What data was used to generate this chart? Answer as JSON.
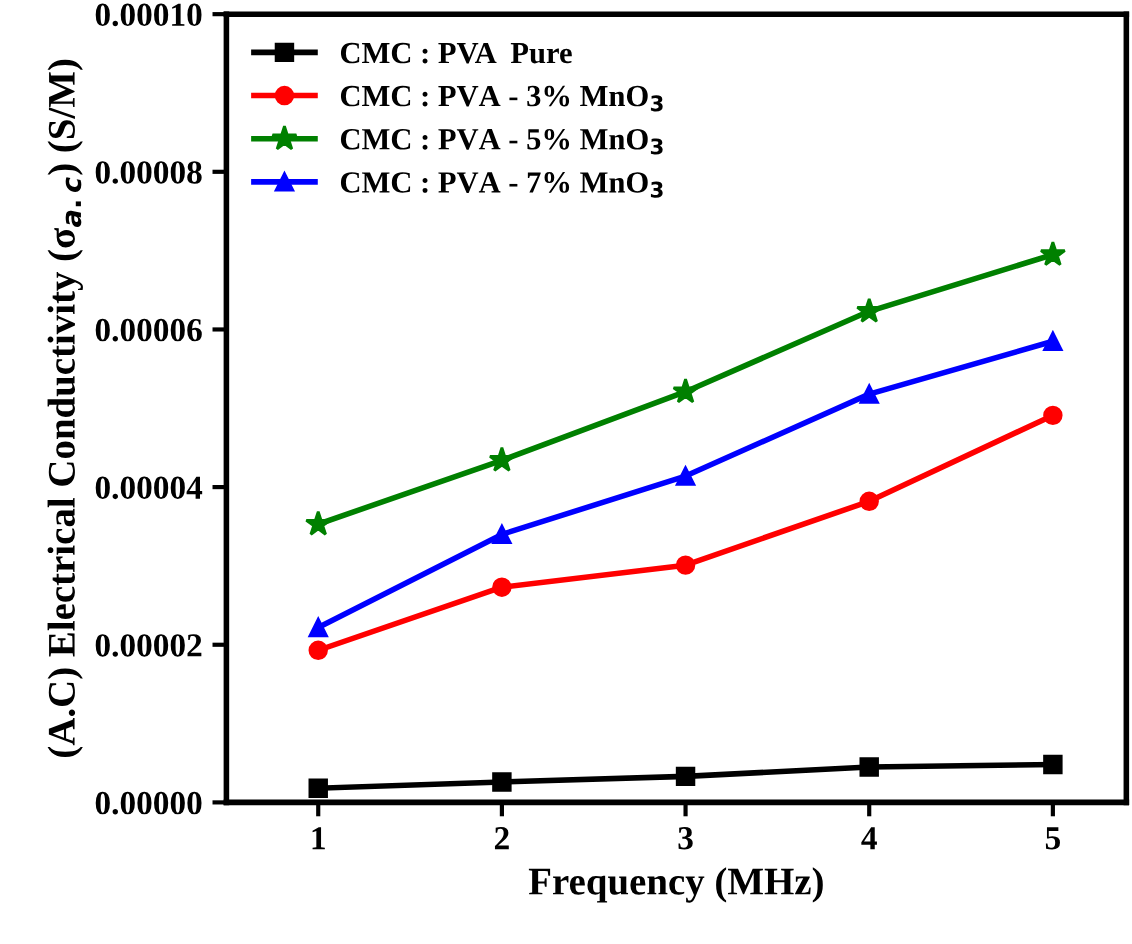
{
  "chart_data": {
    "type": "line",
    "xlabel": "Frequency (MHz)",
    "ylabel": "(A.C) Electrical Conductivity (σ$_{a.c}$) (S/M)",
    "x": [
      1,
      2,
      3,
      4,
      5
    ],
    "series": [
      {
        "name": "CMC : PVA  Pure",
        "color": "#000000",
        "marker": "square",
        "values": [
          1.8e-06,
          2.6e-06,
          3.3e-06,
          4.5e-06,
          4.8e-06
        ]
      },
      {
        "name": "CMC : PVA - 3% MnO$_{3}$",
        "color": "#ff0000",
        "marker": "circle",
        "values": [
          1.93e-05,
          2.73e-05,
          3.01e-05,
          3.82e-05,
          4.91e-05
        ]
      },
      {
        "name": "CMC : PVA - 5% MnO$_{3}$",
        "color": "#008000",
        "marker": "star",
        "values": [
          3.53e-05,
          4.34e-05,
          5.21e-05,
          6.23e-05,
          6.95e-05
        ]
      },
      {
        "name": "CMC : PVA - 7% MnO$_{3}$",
        "color": "#0000ff",
        "marker": "triangle",
        "values": [
          2.22e-05,
          3.4e-05,
          4.14e-05,
          5.18e-05,
          5.85e-05
        ]
      }
    ],
    "xlim": [
      0.5,
      5.4
    ],
    "xticks": [
      1,
      2,
      3,
      4,
      5
    ],
    "ylim": [
      0,
      0.0001
    ],
    "yticks": [
      {
        "value": 0,
        "label": "0.00000"
      },
      {
        "value": 2e-05,
        "label": "0.00002"
      },
      {
        "value": 4e-05,
        "label": "0.00004"
      },
      {
        "value": 6e-05,
        "label": "0.00006"
      },
      {
        "value": 8e-05,
        "label": "0.00008"
      },
      {
        "value": 0.0001,
        "label": "0.00010"
      }
    ],
    "legend": "top left",
    "line_style": "solid",
    "grid": false
  }
}
